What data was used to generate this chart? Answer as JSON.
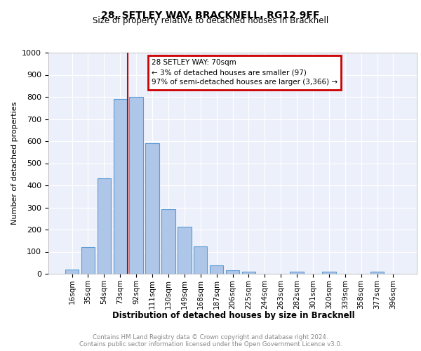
{
  "title1": "28, SETLEY WAY, BRACKNELL, RG12 9FF",
  "title2": "Size of property relative to detached houses in Bracknell",
  "xlabel": "Distribution of detached houses by size in Bracknell",
  "ylabel": "Number of detached properties",
  "bar_labels": [
    "16sqm",
    "35sqm",
    "54sqm",
    "73sqm",
    "92sqm",
    "111sqm",
    "130sqm",
    "149sqm",
    "168sqm",
    "187sqm",
    "206sqm",
    "225sqm",
    "244sqm",
    "263sqm",
    "282sqm",
    "301sqm",
    "320sqm",
    "339sqm",
    "358sqm",
    "377sqm",
    "396sqm"
  ],
  "bar_values": [
    20,
    122,
    432,
    790,
    800,
    590,
    293,
    212,
    125,
    38,
    15,
    10,
    0,
    0,
    10,
    0,
    8,
    0,
    0,
    10,
    0
  ],
  "bar_color": "#aec6e8",
  "bar_edge_color": "#5b9bd5",
  "annotation_text1": "28 SETLEY WAY: 70sqm",
  "annotation_text2": "← 3% of detached houses are smaller (97)",
  "annotation_text3": "97% of semi-detached houses are larger (3,366) →",
  "annotation_edge_color": "#cc0000",
  "vline_color": "#cc0000",
  "vline_index": 3.45,
  "ylim": [
    0,
    1000
  ],
  "yticks": [
    0,
    100,
    200,
    300,
    400,
    500,
    600,
    700,
    800,
    900,
    1000
  ],
  "footer1": "Contains HM Land Registry data © Crown copyright and database right 2024.",
  "footer2": "Contains public sector information licensed under the Open Government Licence v3.0.",
  "bg_color": "#ecf0fb",
  "grid_color": "#ffffff"
}
